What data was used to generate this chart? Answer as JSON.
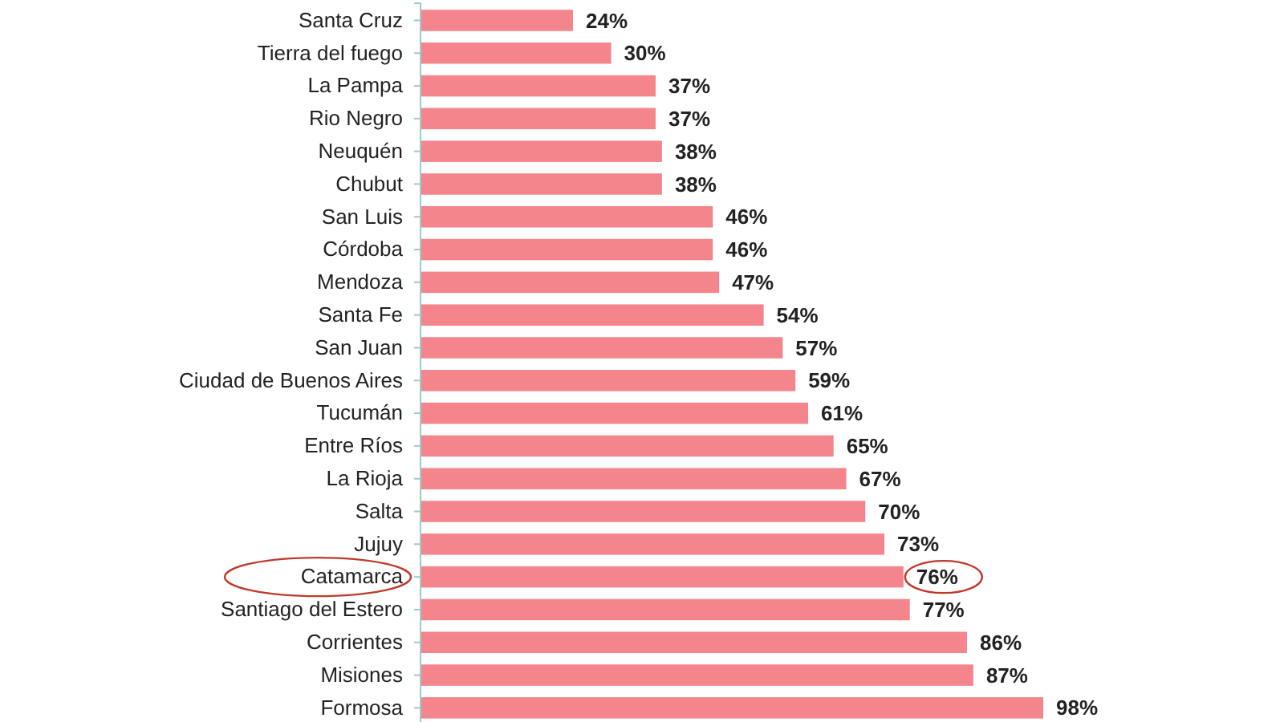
{
  "chart_data": {
    "type": "bar",
    "orientation": "horizontal",
    "categories": [
      "Santa Cruz",
      "Tierra del fuego",
      "La Pampa",
      "Rio Negro",
      "Neuquén",
      "Chubut",
      "San Luis",
      "Córdoba",
      "Mendoza",
      "Santa Fe",
      "San Juan",
      "Ciudad de Buenos Aires",
      "Tucumán",
      "Entre Ríos",
      "La Rioja",
      "Salta",
      "Jujuy",
      "Catamarca",
      "Santiago del Estero",
      "Corrientes",
      "Misiones",
      "Formosa"
    ],
    "values": [
      24,
      30,
      37,
      37,
      38,
      38,
      46,
      46,
      47,
      54,
      57,
      59,
      61,
      65,
      67,
      70,
      73,
      76,
      77,
      86,
      87,
      98
    ],
    "value_labels": [
      "24%",
      "30%",
      "37%",
      "37%",
      "38%",
      "38%",
      "46%",
      "46%",
      "47%",
      "54%",
      "57%",
      "59%",
      "61%",
      "65%",
      "67%",
      "70%",
      "73%",
      "76%",
      "77%",
      "86%",
      "87%",
      "98%"
    ],
    "color": "#f4858d"
  }
}
